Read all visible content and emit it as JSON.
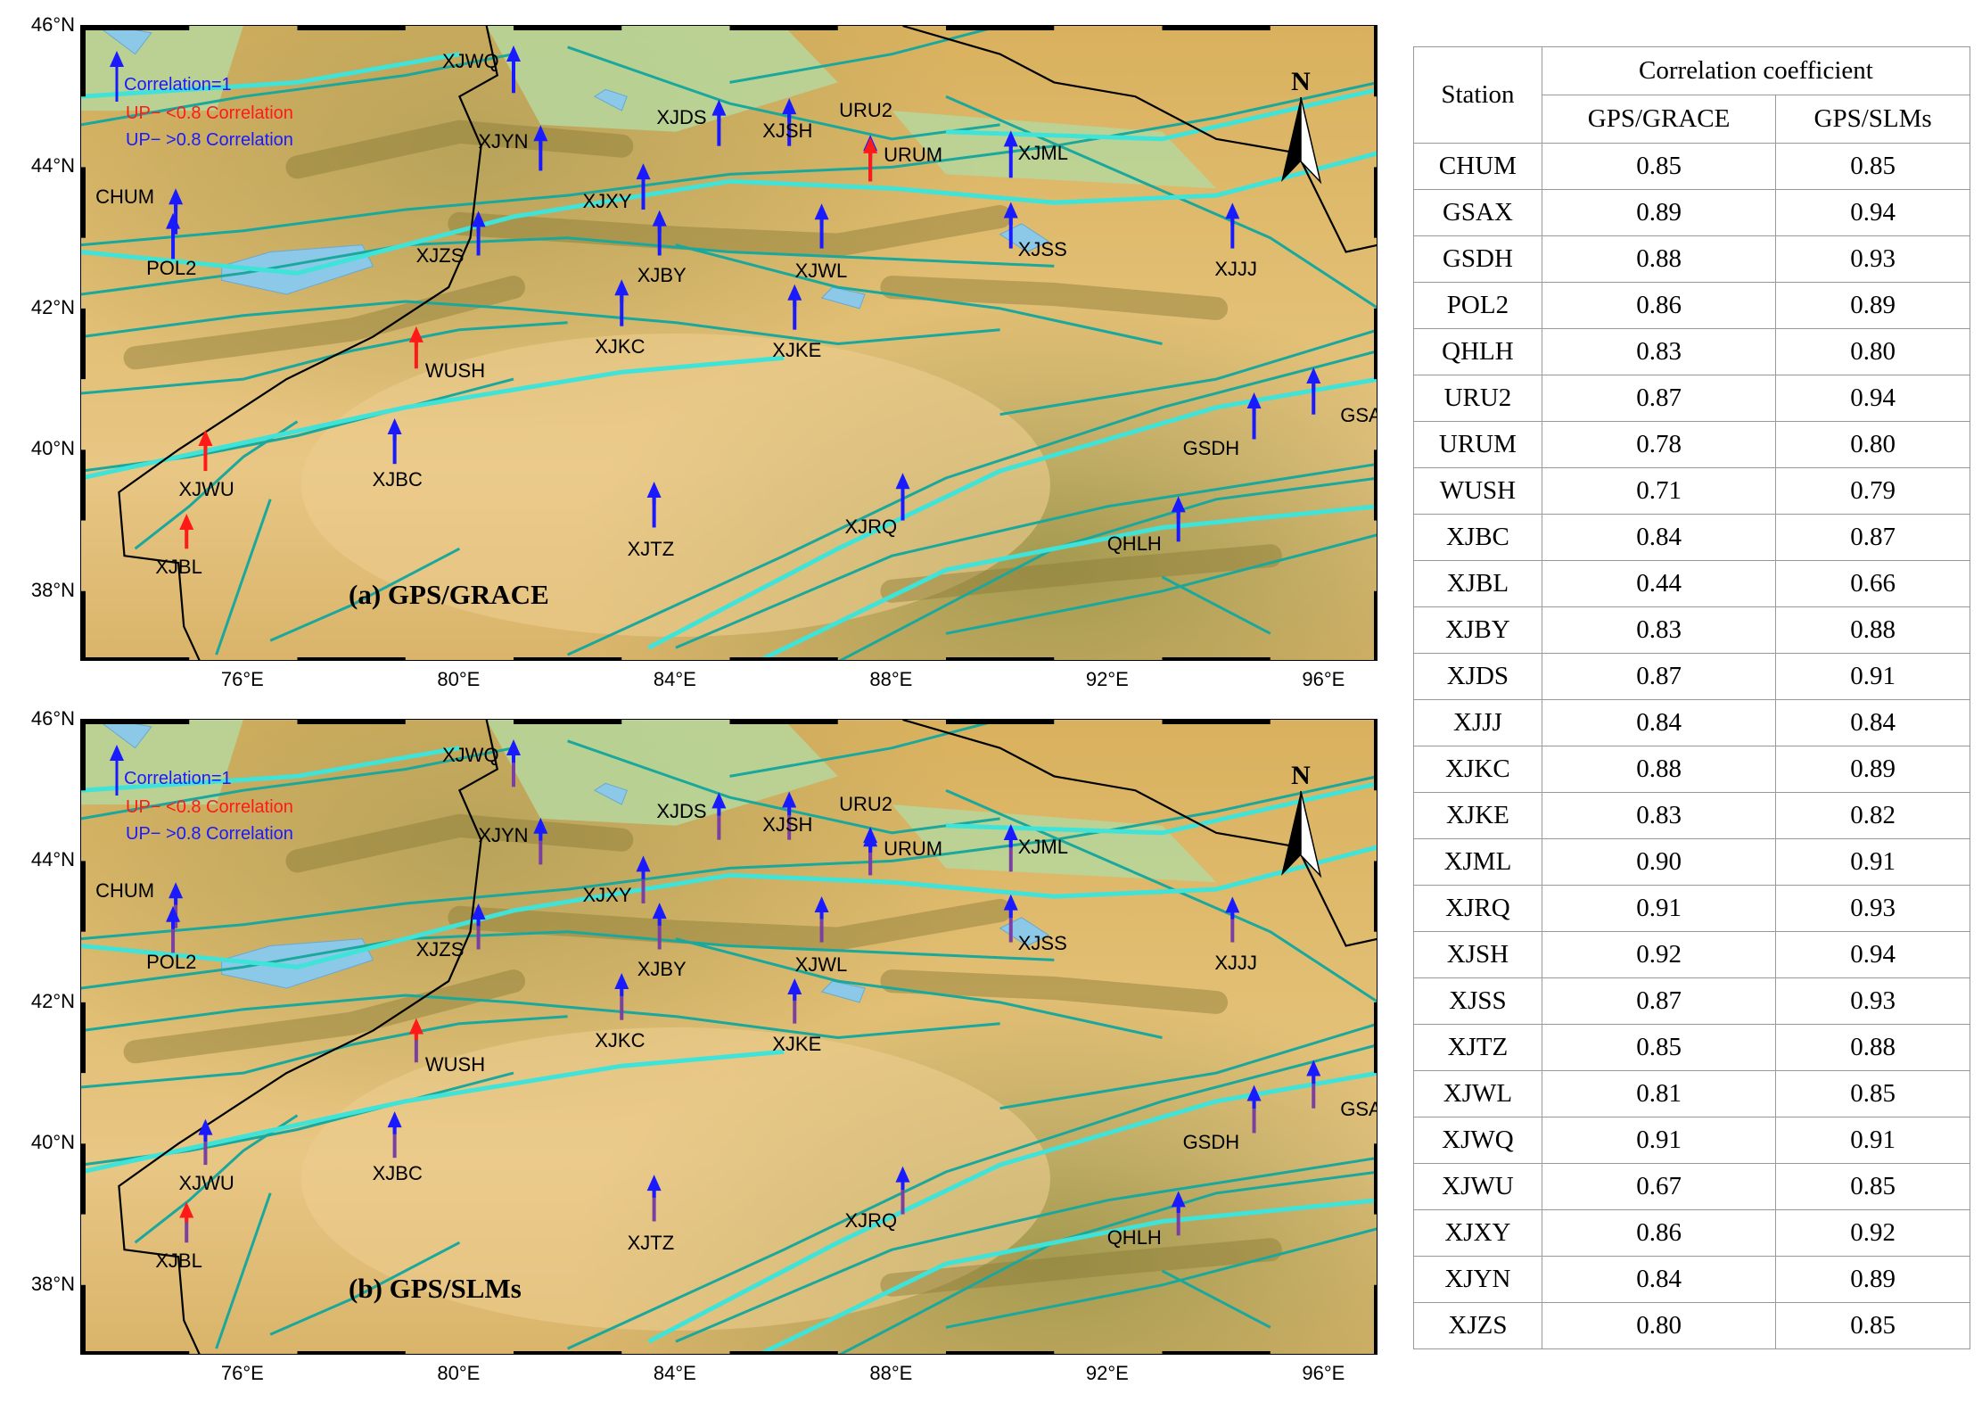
{
  "panels": [
    {
      "title": "(a) GPS/GRACE",
      "legend": [
        "Correlation=1",
        "UP− <0.8 Correlation",
        "UP− >0.8 Correlation"
      ],
      "north": "N"
    },
    {
      "title": "(b) GPS/SLMs",
      "legend": [
        "Correlation=1",
        "UP− <0.8 Correlation",
        "UP− >0.8 Correlation"
      ],
      "north": "N"
    }
  ],
  "axes": {
    "lat_labels": [
      "46°N",
      "44°N",
      "42°N",
      "40°N",
      "38°N"
    ],
    "lon_labels": [
      "76°E",
      "80°E",
      "84°E",
      "88°E",
      "92°E",
      "96°E"
    ]
  },
  "colors": {
    "low_corr": "#ff1a1a",
    "high_corr": "#1a1aff",
    "slm_arrow": "#7a3fa0",
    "fault": "#1aa89c",
    "major_fault": "#3fe3d8",
    "border": "#000000",
    "lake": "#8cc8e8"
  },
  "stations": [
    {
      "name": "CHUM",
      "lon": 74.75,
      "lat": 43.05,
      "grace": 0.85,
      "slm": 0.85
    },
    {
      "name": "GSAX",
      "lon": 95.8,
      "lat": 40.5,
      "grace": 0.89,
      "slm": 0.94
    },
    {
      "name": "GSDH",
      "lon": 94.7,
      "lat": 40.15,
      "grace": 0.88,
      "slm": 0.93
    },
    {
      "name": "POL2",
      "lon": 74.7,
      "lat": 42.7,
      "grace": 0.86,
      "slm": 0.89
    },
    {
      "name": "QHLH",
      "lon": 93.3,
      "lat": 38.7,
      "grace": 0.83,
      "slm": 0.8
    },
    {
      "name": "URU2",
      "lon": 87.6,
      "lat": 43.8,
      "grace": 0.87,
      "slm": 0.94
    },
    {
      "name": "URUM",
      "lon": 87.6,
      "lat": 43.8,
      "grace": 0.78,
      "slm": 0.8
    },
    {
      "name": "WUSH",
      "lon": 79.2,
      "lat": 41.15,
      "grace": 0.71,
      "slm": 0.79
    },
    {
      "name": "XJBC",
      "lon": 78.8,
      "lat": 39.8,
      "grace": 0.84,
      "slm": 0.87
    },
    {
      "name": "XJBL",
      "lon": 74.95,
      "lat": 38.6,
      "grace": 0.44,
      "slm": 0.66
    },
    {
      "name": "XJBY",
      "lon": 83.7,
      "lat": 42.75,
      "grace": 0.83,
      "slm": 0.88
    },
    {
      "name": "XJDS",
      "lon": 84.8,
      "lat": 44.3,
      "grace": 0.87,
      "slm": 0.91
    },
    {
      "name": "XJJJ",
      "lon": 94.3,
      "lat": 42.85,
      "grace": 0.84,
      "slm": 0.84
    },
    {
      "name": "XJKC",
      "lon": 83.0,
      "lat": 41.75,
      "grace": 0.88,
      "slm": 0.89
    },
    {
      "name": "XJKE",
      "lon": 86.2,
      "lat": 41.7,
      "grace": 0.83,
      "slm": 0.82
    },
    {
      "name": "XJML",
      "lon": 90.2,
      "lat": 43.85,
      "grace": 0.9,
      "slm": 0.91
    },
    {
      "name": "XJRQ",
      "lon": 88.2,
      "lat": 39.0,
      "grace": 0.91,
      "slm": 0.93
    },
    {
      "name": "XJSH",
      "lon": 86.1,
      "lat": 44.3,
      "grace": 0.92,
      "slm": 0.94
    },
    {
      "name": "XJSS",
      "lon": 90.2,
      "lat": 42.85,
      "grace": 0.87,
      "slm": 0.93
    },
    {
      "name": "XJTZ",
      "lon": 83.6,
      "lat": 38.9,
      "grace": 0.85,
      "slm": 0.88
    },
    {
      "name": "XJWL",
      "lon": 86.7,
      "lat": 42.85,
      "grace": 0.81,
      "slm": 0.85
    },
    {
      "name": "XJWQ",
      "lon": 81.0,
      "lat": 45.05,
      "grace": 0.91,
      "slm": 0.91
    },
    {
      "name": "XJWU",
      "lon": 75.3,
      "lat": 39.7,
      "grace": 0.67,
      "slm": 0.85
    },
    {
      "name": "XJXY",
      "lon": 83.4,
      "lat": 43.4,
      "grace": 0.86,
      "slm": 0.92
    },
    {
      "name": "XJYN",
      "lon": 81.5,
      "lat": 43.95,
      "grace": 0.84,
      "slm": 0.89
    },
    {
      "name": "XJZS",
      "lon": 80.35,
      "lat": 42.75,
      "grace": 0.8,
      "slm": 0.85
    }
  ],
  "table": {
    "header_station": "Station",
    "header_group": "Correlation coefficient",
    "header_cols": [
      "GPS/GRACE",
      "GPS/SLMs"
    ],
    "rows": [
      [
        "CHUM",
        "0.85",
        "0.85"
      ],
      [
        "GSAX",
        "0.89",
        "0.94"
      ],
      [
        "GSDH",
        "0.88",
        "0.93"
      ],
      [
        "POL2",
        "0.86",
        "0.89"
      ],
      [
        "QHLH",
        "0.83",
        "0.80"
      ],
      [
        "URU2",
        "0.87",
        "0.94"
      ],
      [
        "URUM",
        "0.78",
        "0.80"
      ],
      [
        "WUSH",
        "0.71",
        "0.79"
      ],
      [
        "XJBC",
        "0.84",
        "0.87"
      ],
      [
        "XJBL",
        "0.44",
        "0.66"
      ],
      [
        "XJBY",
        "0.83",
        "0.88"
      ],
      [
        "XJDS",
        "0.87",
        "0.91"
      ],
      [
        "XJJJ",
        "0.84",
        "0.84"
      ],
      [
        "XJKC",
        "0.88",
        "0.89"
      ],
      [
        "XJKE",
        "0.83",
        "0.82"
      ],
      [
        "XJML",
        "0.90",
        "0.91"
      ],
      [
        "XJRQ",
        "0.91",
        "0.93"
      ],
      [
        "XJSH",
        "0.92",
        "0.94"
      ],
      [
        "XJSS",
        "0.87",
        "0.93"
      ],
      [
        "XJTZ",
        "0.85",
        "0.88"
      ],
      [
        "XJWL",
        "0.81",
        "0.85"
      ],
      [
        "XJWQ",
        "0.91",
        "0.91"
      ],
      [
        "XJWU",
        "0.67",
        "0.85"
      ],
      [
        "XJXY",
        "0.86",
        "0.92"
      ],
      [
        "XJYN",
        "0.84",
        "0.89"
      ],
      [
        "XJZS",
        "0.80",
        "0.85"
      ]
    ]
  }
}
